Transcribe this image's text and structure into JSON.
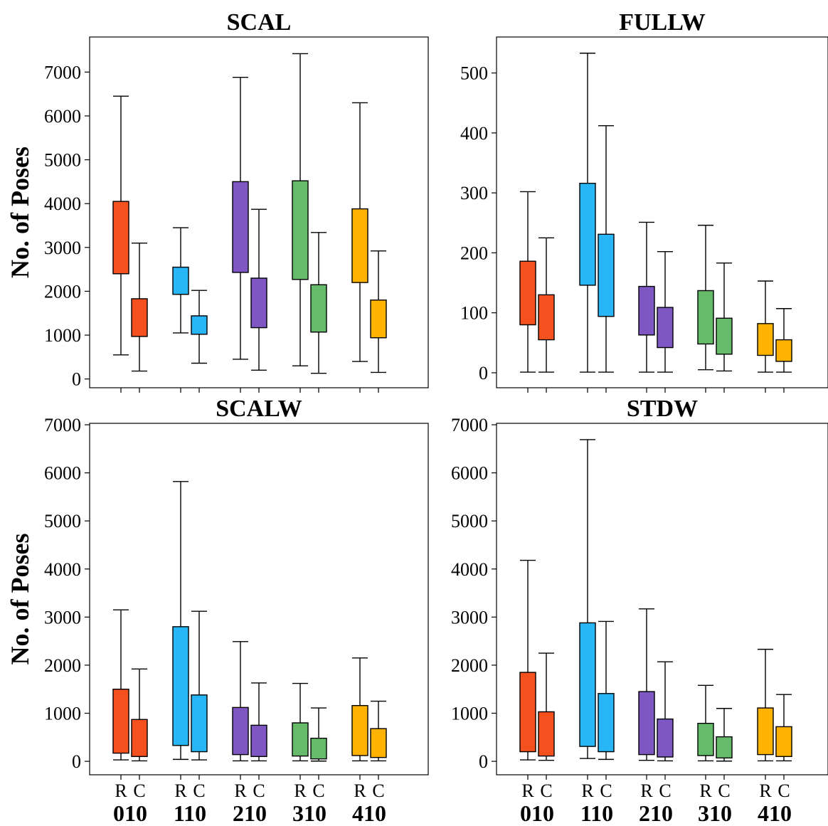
{
  "ylabel": "No. of Poses",
  "rc_labels": [
    "R",
    "C"
  ],
  "colors": {
    "010": "#f4511e",
    "110": "#29b6f6",
    "210": "#7e57c2",
    "310": "#66bb6a",
    "410": "#ffb300"
  },
  "chart_data": [
    {
      "type": "box",
      "title": "SCAL",
      "ylabel": "No. of Poses",
      "ylim": [
        -200,
        7800
      ],
      "yticks": [
        0,
        1000,
        2000,
        3000,
        4000,
        5000,
        6000,
        7000
      ],
      "x_tick_labels": [],
      "categories": [
        "010",
        "110",
        "210",
        "310",
        "410"
      ],
      "series": [
        {
          "name": "R",
          "boxes": [
            {
              "min": 550,
              "q1": 2400,
              "q3": 4050,
              "max": 6450
            },
            {
              "min": 1050,
              "q1": 1930,
              "q3": 2550,
              "max": 3450
            },
            {
              "min": 450,
              "q1": 2430,
              "q3": 4500,
              "max": 6880
            },
            {
              "min": 300,
              "q1": 2270,
              "q3": 4520,
              "max": 7420
            },
            {
              "min": 400,
              "q1": 2200,
              "q3": 3880,
              "max": 6300
            }
          ]
        },
        {
          "name": "C",
          "boxes": [
            {
              "min": 180,
              "q1": 970,
              "q3": 1830,
              "max": 3100
            },
            {
              "min": 360,
              "q1": 1020,
              "q3": 1440,
              "max": 2020
            },
            {
              "min": 200,
              "q1": 1170,
              "q3": 2300,
              "max": 3870
            },
            {
              "min": 130,
              "q1": 1070,
              "q3": 2150,
              "max": 3340
            },
            {
              "min": 150,
              "q1": 940,
              "q3": 1800,
              "max": 2920
            }
          ]
        }
      ]
    },
    {
      "type": "box",
      "title": "FULLW",
      "ylabel": "",
      "ylim": [
        -25,
        560
      ],
      "yticks": [
        0,
        100,
        200,
        300,
        400,
        500
      ],
      "x_tick_labels": [],
      "categories": [
        "010",
        "110",
        "210",
        "310",
        "410"
      ],
      "series": [
        {
          "name": "R",
          "boxes": [
            {
              "min": 1,
              "q1": 80,
              "q3": 186,
              "max": 302
            },
            {
              "min": 1,
              "q1": 146,
              "q3": 316,
              "max": 533
            },
            {
              "min": 1,
              "q1": 63,
              "q3": 144,
              "max": 251
            },
            {
              "min": 5,
              "q1": 48,
              "q3": 137,
              "max": 246
            },
            {
              "min": 1,
              "q1": 29,
              "q3": 82,
              "max": 153
            }
          ]
        },
        {
          "name": "C",
          "boxes": [
            {
              "min": 1,
              "q1": 55,
              "q3": 130,
              "max": 225
            },
            {
              "min": 1,
              "q1": 94,
              "q3": 231,
              "max": 412
            },
            {
              "min": 1,
              "q1": 42,
              "q3": 109,
              "max": 202
            },
            {
              "min": 3,
              "q1": 31,
              "q3": 91,
              "max": 183
            },
            {
              "min": 1,
              "q1": 19,
              "q3": 55,
              "max": 107
            }
          ]
        }
      ]
    },
    {
      "type": "box",
      "title": "SCALW",
      "ylabel": "No. of Poses",
      "ylim": [
        -280,
        7030
      ],
      "yticks": [
        0,
        1000,
        2000,
        3000,
        4000,
        5000,
        6000,
        7000
      ],
      "x_tick_labels": [
        "R",
        "C",
        "R",
        "C",
        "R",
        "C",
        "R",
        "C",
        "R",
        "C"
      ],
      "categories": [
        "010",
        "110",
        "210",
        "310",
        "410"
      ],
      "series": [
        {
          "name": "R",
          "boxes": [
            {
              "min": 30,
              "q1": 170,
              "q3": 1500,
              "max": 3150
            },
            {
              "min": 40,
              "q1": 330,
              "q3": 2800,
              "max": 5820
            },
            {
              "min": 10,
              "q1": 140,
              "q3": 1120,
              "max": 2490
            },
            {
              "min": 10,
              "q1": 110,
              "q3": 800,
              "max": 1620
            },
            {
              "min": 10,
              "q1": 120,
              "q3": 1160,
              "max": 2150
            }
          ]
        },
        {
          "name": "C",
          "boxes": [
            {
              "min": 10,
              "q1": 100,
              "q3": 870,
              "max": 1920
            },
            {
              "min": 30,
              "q1": 200,
              "q3": 1380,
              "max": 3120
            },
            {
              "min": 10,
              "q1": 100,
              "q3": 750,
              "max": 1630
            },
            {
              "min": 5,
              "q1": 50,
              "q3": 480,
              "max": 1110
            },
            {
              "min": 10,
              "q1": 80,
              "q3": 680,
              "max": 1250
            }
          ]
        }
      ]
    },
    {
      "type": "box",
      "title": "STDW",
      "ylabel": "",
      "ylim": [
        -280,
        7030
      ],
      "yticks": [
        0,
        1000,
        2000,
        3000,
        4000,
        5000,
        6000,
        7000
      ],
      "x_tick_labels": [
        "R",
        "C",
        "R",
        "C",
        "R",
        "C",
        "R",
        "C",
        "R",
        "C"
      ],
      "categories": [
        "010",
        "110",
        "210",
        "310",
        "410"
      ],
      "series": [
        {
          "name": "R",
          "boxes": [
            {
              "min": 30,
              "q1": 200,
              "q3": 1850,
              "max": 4180
            },
            {
              "min": 60,
              "q1": 310,
              "q3": 2880,
              "max": 6690
            },
            {
              "min": 20,
              "q1": 140,
              "q3": 1450,
              "max": 3170
            },
            {
              "min": 10,
              "q1": 120,
              "q3": 790,
              "max": 1580
            },
            {
              "min": 10,
              "q1": 140,
              "q3": 1110,
              "max": 2330
            }
          ]
        },
        {
          "name": "C",
          "boxes": [
            {
              "min": 20,
              "q1": 110,
              "q3": 1030,
              "max": 2250
            },
            {
              "min": 40,
              "q1": 200,
              "q3": 1410,
              "max": 2910
            },
            {
              "min": 10,
              "q1": 90,
              "q3": 880,
              "max": 2070
            },
            {
              "min": 5,
              "q1": 70,
              "q3": 510,
              "max": 1100
            },
            {
              "min": 10,
              "q1": 100,
              "q3": 720,
              "max": 1390
            }
          ]
        }
      ]
    }
  ]
}
